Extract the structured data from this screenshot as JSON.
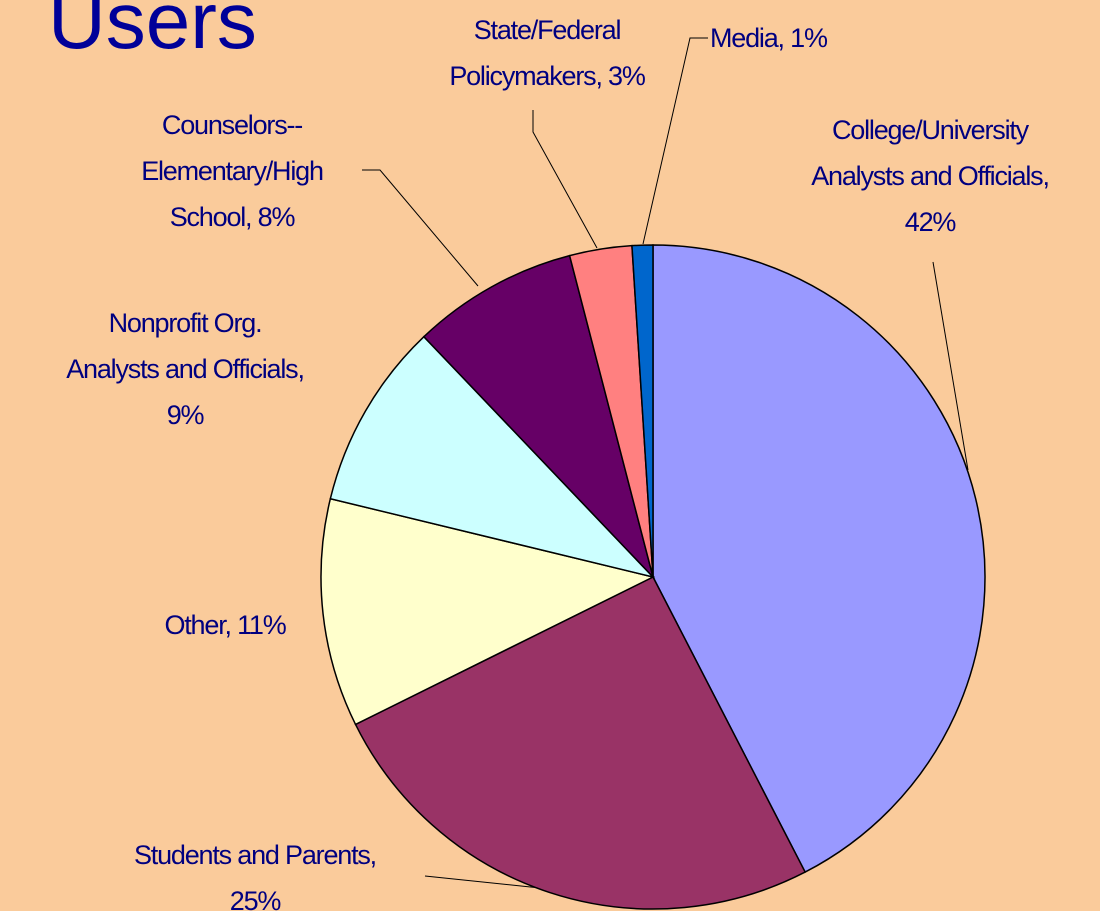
{
  "chart_data": {
    "type": "pie",
    "title": "Users",
    "labels": [
      [
        "College/University",
        "Analysts and Officials,",
        "42%"
      ],
      [
        "Students and Parents,",
        "25%"
      ],
      [
        "Other, 11%"
      ],
      [
        "Nonprofit Org.",
        "Analysts and Officials,",
        "9%"
      ],
      [
        "Counselors--",
        "Elementary/High",
        "School, 8%"
      ],
      [
        "State/Federal",
        "Policymakers, 3%"
      ],
      [
        "Media, 1%"
      ]
    ],
    "values": [
      42,
      25,
      11,
      9,
      8,
      3,
      1
    ],
    "colors": [
      "#9999FF",
      "#993366",
      "#FFFFCC",
      "#CCFFFF",
      "#660066",
      "#FF8080",
      "#0066CC"
    ]
  }
}
